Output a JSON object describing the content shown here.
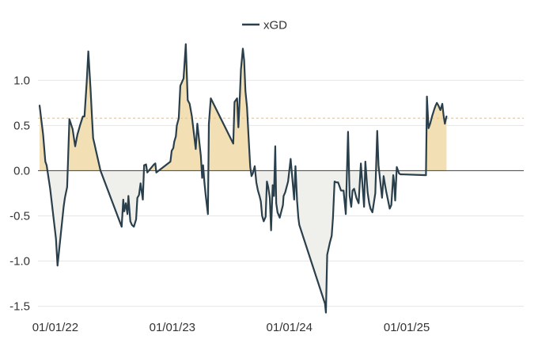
{
  "chart_data": {
    "type": "area",
    "title": "",
    "xlabel": "",
    "ylabel": "",
    "ylim": [
      -1.6,
      1.45
    ],
    "xlim": [
      "2021-11-08",
      "2026-01-01"
    ],
    "grid": true,
    "legend_position": "top-center",
    "reference_line": 0.58,
    "colors": {
      "line": "#2a3f4c",
      "positive_fill": "#f3dfb4",
      "negative_fill": "#efefeb",
      "reference_line": "#f0c987",
      "grid": "#e6e6e6",
      "zero_line": "#555555"
    },
    "x_ticks": [
      {
        "date": "2022-01-01",
        "label": "01/01/22"
      },
      {
        "date": "2023-01-01",
        "label": "01/01/23"
      },
      {
        "date": "2024-01-01",
        "label": "01/01/24"
      },
      {
        "date": "2025-01-01",
        "label": "01/01/25"
      }
    ],
    "y_ticks": [
      {
        "value": 1.0,
        "label": "1.0"
      },
      {
        "value": 0.5,
        "label": "0.5"
      },
      {
        "value": 0.0,
        "label": "0.0"
      },
      {
        "value": -0.5,
        "label": "-0.5"
      },
      {
        "value": -1.0,
        "label": "-1.0"
      },
      {
        "value": -1.5,
        "label": "-1.5"
      }
    ],
    "series": [
      {
        "name": "xGD",
        "x": [
          "2021-11-13",
          "2021-11-24",
          "2021-12-01",
          "2021-12-05",
          "2021-12-16",
          "2022-01-03",
          "2022-01-08",
          "2022-01-27",
          "2022-01-31",
          "2022-02-07",
          "2022-02-14",
          "2022-02-24",
          "2022-03-04",
          "2022-03-11",
          "2022-03-19",
          "2022-03-28",
          "2022-04-02",
          "2022-04-09",
          "2022-04-14",
          "2022-04-21",
          "2022-04-25",
          "2022-04-29",
          "2022-05-03",
          "2022-05-08",
          "2022-05-22",
          "2022-07-27",
          "2022-08-01",
          "2022-08-04",
          "2022-08-09",
          "2022-08-14",
          "2022-08-17",
          "2022-08-23",
          "2022-08-28",
          "2022-09-03",
          "2022-09-10",
          "2022-09-14",
          "2022-09-19",
          "2022-09-24",
          "2022-10-01",
          "2022-10-05",
          "2022-10-11",
          "2022-10-15",
          "2022-11-05",
          "2022-11-09",
          "2022-11-12",
          "2022-12-26",
          "2022-12-30",
          "2023-01-04",
          "2023-01-07",
          "2023-01-12",
          "2023-01-15",
          "2023-01-21",
          "2023-01-26",
          "2023-02-05",
          "2023-02-12",
          "2023-02-18",
          "2023-02-24",
          "2023-03-03",
          "2023-03-15",
          "2023-03-20",
          "2023-03-31",
          "2023-04-04",
          "2023-04-07",
          "2023-04-11",
          "2023-04-15",
          "2023-04-22",
          "2023-04-25",
          "2023-05-01",
          "2023-07-10",
          "2023-07-14",
          "2023-07-22",
          "2023-07-26",
          "2023-07-31",
          "2023-08-03",
          "2023-08-09",
          "2023-08-13",
          "2023-08-17",
          "2023-08-22",
          "2023-08-27",
          "2023-09-01",
          "2023-09-05",
          "2023-09-09",
          "2023-09-15",
          "2023-09-20",
          "2023-09-25",
          "2023-09-30",
          "2023-10-04",
          "2023-10-08",
          "2023-10-13",
          "2023-10-19",
          "2023-10-23",
          "2023-10-27",
          "2023-11-01",
          "2023-11-05",
          "2023-11-10",
          "2023-11-14",
          "2023-11-18",
          "2023-11-21",
          "2023-11-25",
          "2023-12-02",
          "2023-12-12",
          "2023-12-14",
          "2023-12-19",
          "2023-12-28",
          "2024-01-05",
          "2024-01-12",
          "2024-01-16",
          "2024-01-20",
          "2024-01-25",
          "2024-01-29",
          "2024-02-01",
          "2024-04-21",
          "2024-04-24",
          "2024-04-28",
          "2024-05-06",
          "2024-05-12",
          "2024-05-16",
          "2024-05-21",
          "2024-05-27",
          "2024-06-01",
          "2024-06-10",
          "2024-06-18",
          "2024-06-25",
          "2024-07-02",
          "2024-07-07",
          "2024-07-12",
          "2024-07-16",
          "2024-07-21",
          "2024-07-28",
          "2024-08-04",
          "2024-08-11",
          "2024-08-16",
          "2024-08-21",
          "2024-08-25",
          "2024-09-01",
          "2024-09-06",
          "2024-09-10",
          "2024-09-16",
          "2024-09-25",
          "2024-10-01",
          "2024-10-05",
          "2024-10-16",
          "2024-10-21",
          "2024-10-25",
          "2024-10-29",
          "2024-11-09",
          "2024-11-14",
          "2024-11-20",
          "2024-11-23",
          "2024-11-26",
          "2024-12-01",
          "2024-12-08",
          "2024-12-12",
          "2025-03-02",
          "2025-03-05",
          "2025-03-10",
          "2025-03-15",
          "2025-03-21",
          "2025-03-28",
          "2025-04-01",
          "2025-04-05",
          "2025-04-10",
          "2025-04-16",
          "2025-04-22",
          "2025-04-26",
          "2025-04-30",
          "2025-05-05"
        ],
        "values": [
          0.72,
          0.4,
          0.1,
          0.06,
          -0.2,
          -0.75,
          -1.05,
          -0.4,
          -0.3,
          -0.18,
          0.57,
          0.46,
          0.27,
          0.4,
          0.5,
          0.6,
          0.6,
          0.98,
          1.32,
          0.9,
          0.62,
          0.36,
          0.3,
          0.22,
          0.0,
          -0.62,
          -0.32,
          -0.45,
          -0.36,
          -0.48,
          -0.28,
          -0.56,
          -0.6,
          -0.62,
          -0.54,
          -0.3,
          -0.27,
          -0.14,
          -0.32,
          0.06,
          0.07,
          -0.02,
          0.07,
          0.08,
          -0.02,
          0.1,
          0.22,
          0.25,
          0.32,
          0.38,
          0.5,
          0.58,
          0.94,
          1.02,
          1.4,
          0.78,
          0.74,
          0.6,
          0.24,
          0.52,
          0.16,
          -0.08,
          0.06,
          -0.13,
          -0.27,
          -0.48,
          0.52,
          0.8,
          0.3,
          0.76,
          0.8,
          0.48,
          0.86,
          1.12,
          1.35,
          1.22,
          0.88,
          0.7,
          0.36,
          0.04,
          -0.06,
          -0.03,
          0.05,
          -0.13,
          -0.22,
          -0.28,
          -0.34,
          -0.5,
          -0.56,
          -0.51,
          -0.12,
          -0.18,
          -0.3,
          -0.66,
          -0.16,
          -0.28,
          0.27,
          -0.36,
          -0.46,
          -0.52,
          -0.38,
          -0.28,
          -0.24,
          -0.12,
          0.13,
          -0.16,
          -0.32,
          0.05,
          -0.33,
          -0.52,
          -0.6,
          -1.47,
          -1.57,
          -0.93,
          -0.8,
          -0.72,
          -0.52,
          -0.12,
          -0.13,
          -0.13,
          -0.22,
          -0.22,
          -0.48,
          0.43,
          -0.28,
          -0.4,
          -0.22,
          -0.2,
          -0.3,
          -0.36,
          0.08,
          -0.16,
          -0.4,
          0.1,
          -0.24,
          -0.36,
          -0.42,
          -0.46,
          -0.25,
          0.44,
          0.06,
          -0.3,
          -0.06,
          -0.15,
          -0.23,
          -0.42,
          -0.38,
          -0.05,
          -0.14,
          -0.33,
          0.04,
          -0.03,
          -0.04,
          -0.05,
          0.82,
          0.47,
          0.52,
          0.6,
          0.68,
          0.72,
          0.75,
          0.72,
          0.67,
          0.74,
          0.61,
          0.52,
          0.6
        ]
      }
    ]
  }
}
